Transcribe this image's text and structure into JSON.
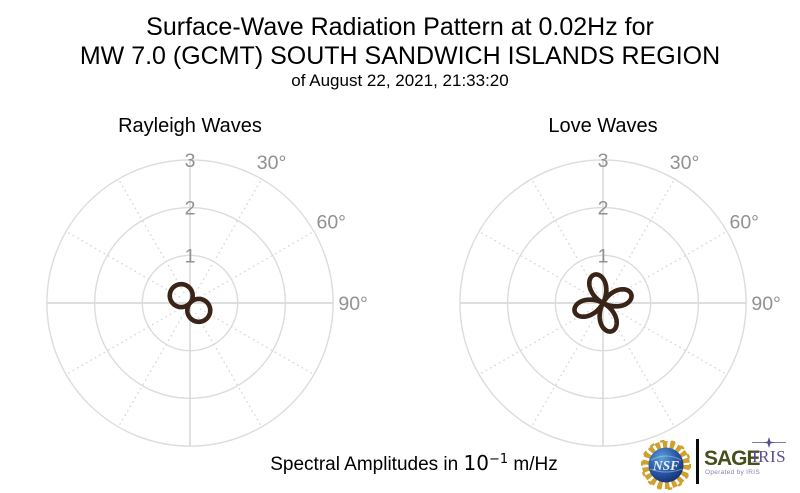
{
  "title": {
    "line1": "Surface-Wave Radiation Pattern at 0.02Hz for",
    "line2": "MW 7.0 (GCMT) SOUTH SANDWICH ISLANDS REGION",
    "line3": "of August 22, 2021, 21:33:20"
  },
  "caption": {
    "prefix": "Spectral Amplitudes in",
    "base": "10",
    "exponent": "−1",
    "suffix": "m/Hz"
  },
  "colors": {
    "pattern": "#3a2417",
    "grid_ring": "#dcdcdc",
    "grid_axis": "#d4d4d4",
    "grid_spoke": "#d8d8d8",
    "tick_label": "#919191",
    "title_text": "#000000"
  },
  "chart_data": [
    {
      "type": "polar",
      "name": "rayleigh-radiation-pattern",
      "title": "Rayleigh Waves",
      "r_ticks": [
        1,
        2,
        3
      ],
      "r_max": 3,
      "r_units": "10^-1 m/Hz",
      "theta_ticks": [
        {
          "angle_deg": 30,
          "label": "30°"
        },
        {
          "angle_deg": 60,
          "label": "60°"
        },
        {
          "angle_deg": 90,
          "label": "90°"
        }
      ],
      "spoke_step_deg": 30,
      "grid": true,
      "pattern": {
        "shape": "rose",
        "lobes": 2,
        "amplitude": 0.48,
        "orientation_math_deg": 140,
        "r_formula": "r(θ) = 0.48·|cos(θ − 140°)|"
      },
      "color": "#3a2417"
    },
    {
      "type": "polar",
      "name": "love-radiation-pattern",
      "title": "Love Waves",
      "r_ticks": [
        1,
        2,
        3
      ],
      "r_max": 3,
      "r_units": "10^-1 m/Hz",
      "theta_ticks": [
        {
          "angle_deg": 30,
          "label": "30°"
        },
        {
          "angle_deg": 60,
          "label": "60°"
        },
        {
          "angle_deg": 90,
          "label": "90°"
        }
      ],
      "spoke_step_deg": 30,
      "grid": true,
      "pattern": {
        "shape": "rose",
        "lobes": 4,
        "amplitude": 0.62,
        "orientation_math_deg": 17,
        "r_formula": "r(θ) = 0.62·|cos(2(θ − 17°))|"
      },
      "color": "#3a2417"
    }
  ],
  "logos": {
    "nsf": {
      "label": "NSF",
      "ring_color": "#cfa12c",
      "globe_top_color": "#5ba0d6",
      "globe_bottom_color": "#122f73",
      "text_color": "#e9eef5"
    },
    "sage": {
      "label": "SAGE",
      "color": "#474f1d",
      "tagline": "Operated by IRIS",
      "tagline_color": "#8b7fb3"
    },
    "iris": {
      "label": "IRIS",
      "color": "#5b4b92"
    }
  }
}
